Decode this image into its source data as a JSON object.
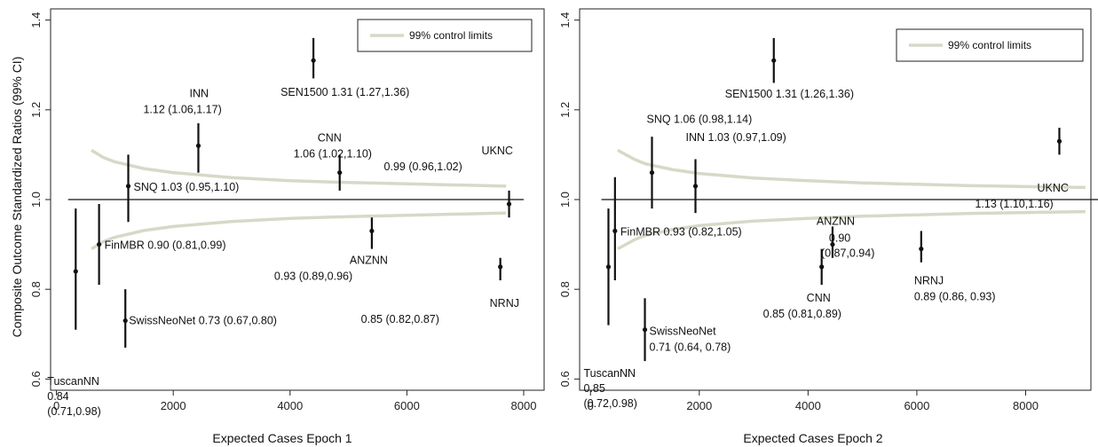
{
  "y_axis_title": "Composite Outcome Standardized Ratios (99% CI)",
  "colors": {
    "control_limit": "#d8d8c8",
    "line": "#111111",
    "point": "#111111"
  },
  "chart_data": [
    {
      "type": "scatter",
      "xlabel": "Expected Cases Epoch 1",
      "ylabel": "Composite Outcome Standardized Ratios (99% CI)",
      "xlim": [
        -100,
        8350
      ],
      "ylim": [
        0.575,
        1.425
      ],
      "x_ticks": [
        0,
        2000,
        4000,
        6000,
        8000
      ],
      "x_tick_labels": [
        "0",
        "2000",
        "4000",
        "6000",
        "8000"
      ],
      "y_ticks": [
        0.6,
        0.8,
        1.0,
        1.2,
        1.4
      ],
      "y_tick_labels": [
        "0.6",
        "0.8",
        "1.0",
        "1.2",
        "1.4"
      ],
      "legend": {
        "label": "99% control limits",
        "position": "top-right"
      },
      "reference_line": 1.0,
      "control_limits": {
        "x": [
          600,
          800,
          1000,
          1500,
          2000,
          3000,
          4000,
          5000,
          6000,
          7000,
          7700
        ],
        "upper": [
          1.11,
          1.094,
          1.084,
          1.069,
          1.06,
          1.049,
          1.042,
          1.038,
          1.035,
          1.032,
          1.03
        ],
        "lower": [
          0.89,
          0.906,
          0.916,
          0.931,
          0.94,
          0.951,
          0.958,
          0.962,
          0.965,
          0.968,
          0.97
        ]
      },
      "points": [
        {
          "name": "TuscanNN",
          "x": 330,
          "y": 0.84,
          "lo": 0.71,
          "hi": 0.98,
          "lines": [
            "TuscanNN",
            "0.84",
            "(0.71,0.98)"
          ]
        },
        {
          "name": "FinMBR",
          "x": 730,
          "y": 0.9,
          "lo": 0.81,
          "hi": 0.99,
          "lines": [
            "FinMBR 0.90 (0.81,0.99)"
          ]
        },
        {
          "name": "SwissNeoNet",
          "x": 1180,
          "y": 0.73,
          "lo": 0.67,
          "hi": 0.8,
          "lines": [
            "SwissNeoNet 0.73 (0.67,0.80)"
          ]
        },
        {
          "name": "SNQ",
          "x": 1230,
          "y": 1.03,
          "lo": 0.95,
          "hi": 1.1,
          "lines": [
            "SNQ 1.03 (0.95,1.10)"
          ]
        },
        {
          "name": "INN",
          "x": 2430,
          "y": 1.12,
          "lo": 1.06,
          "hi": 1.17,
          "lines": [
            "INN",
            "1.12 (1.06,1.17)"
          ]
        },
        {
          "name": "SEN1500",
          "x": 4400,
          "y": 1.31,
          "lo": 1.27,
          "hi": 1.36,
          "lines": [
            "SEN1500 1.31 (1.27,1.36)"
          ]
        },
        {
          "name": "CNN",
          "x": 4850,
          "y": 1.06,
          "lo": 1.02,
          "hi": 1.1,
          "lines": [
            "CNN",
            "1.06 (1.02,1.10)"
          ]
        },
        {
          "name": "ANZNN",
          "x": 5400,
          "y": 0.93,
          "lo": 0.89,
          "hi": 0.96,
          "lines": [
            "ANZNN",
            "0.93 (0.89,0.96)"
          ]
        },
        {
          "name": "NRNJ",
          "x": 7600,
          "y": 0.85,
          "lo": 0.82,
          "hi": 0.87,
          "lines": [
            "NRNJ",
            "0.85 (0.82,0.87)"
          ]
        },
        {
          "name": "UKNC",
          "x": 7750,
          "y": 0.99,
          "lo": 0.96,
          "hi": 1.02,
          "lines": [
            "UKNC",
            "0.99 (0.96,1.02)"
          ]
        }
      ]
    },
    {
      "type": "scatter",
      "xlabel": "Expected Cases Epoch 2",
      "ylabel": "",
      "xlim": [
        -200,
        9200
      ],
      "ylim": [
        0.575,
        1.425
      ],
      "x_ticks": [
        0,
        2000,
        4000,
        6000,
        8000
      ],
      "x_tick_labels": [
        "0",
        "2000",
        "4000",
        "6000",
        "8000"
      ],
      "y_ticks": [
        0.6,
        0.8,
        1.0,
        1.2,
        1.4
      ],
      "y_tick_labels": [
        "0.6",
        "0.8",
        "1.0",
        "1.2",
        "1.4"
      ],
      "legend": {
        "label": "99% control limits",
        "position": "top-right"
      },
      "reference_line": 1.0,
      "control_limits": {
        "x": [
          500,
          800,
          1000,
          1500,
          2000,
          3000,
          4000,
          5000,
          6000,
          7000,
          8000,
          9100
        ],
        "upper": [
          1.11,
          1.09,
          1.08,
          1.067,
          1.058,
          1.048,
          1.042,
          1.037,
          1.034,
          1.031,
          1.029,
          1.027
        ],
        "lower": [
          0.89,
          0.91,
          0.92,
          0.933,
          0.942,
          0.952,
          0.958,
          0.963,
          0.966,
          0.969,
          0.971,
          0.973
        ]
      },
      "points": [
        {
          "name": "TuscanNN",
          "x": 330,
          "y": 0.85,
          "lo": 0.72,
          "hi": 0.98,
          "lines": [
            "TuscanNN",
            "0.85",
            "(0.72,0.98)"
          ]
        },
        {
          "name": "FinMBR",
          "x": 450,
          "y": 0.93,
          "lo": 0.82,
          "hi": 1.05,
          "lines": [
            "FinMBR 0.93 (0.82,1.05)"
          ]
        },
        {
          "name": "SwissNeoNet",
          "x": 1000,
          "y": 0.71,
          "lo": 0.64,
          "hi": 0.78,
          "lines": [
            "SwissNeoNet",
            "0.71 (0.64, 0.78)"
          ]
        },
        {
          "name": "SNQ",
          "x": 1130,
          "y": 1.06,
          "lo": 0.98,
          "hi": 1.14,
          "lines": [
            "SNQ 1.06 (0.98,1.14)"
          ]
        },
        {
          "name": "INN",
          "x": 1930,
          "y": 1.03,
          "lo": 0.97,
          "hi": 1.09,
          "lines": [
            "INN 1.03 (0.97,1.09)"
          ]
        },
        {
          "name": "SEN1500",
          "x": 3370,
          "y": 1.31,
          "lo": 1.26,
          "hi": 1.36,
          "lines": [
            "SEN1500 1.31 (1.26,1.36)"
          ]
        },
        {
          "name": "CNN",
          "x": 4250,
          "y": 0.85,
          "lo": 0.81,
          "hi": 0.89,
          "lines": [
            "CNN",
            "0.85 (0.81,0.89)"
          ]
        },
        {
          "name": "ANZNN",
          "x": 4450,
          "y": 0.9,
          "lo": 0.87,
          "hi": 0.94,
          "lines": [
            "ANZNN",
            "0.90",
            "(0.87,0.94)"
          ]
        },
        {
          "name": "NRNJ",
          "x": 6080,
          "y": 0.89,
          "lo": 0.86,
          "hi": 0.93,
          "lines": [
            "NRNJ",
            "0.89 (0.86, 0.93)"
          ]
        },
        {
          "name": "UKNC",
          "x": 8620,
          "y": 1.13,
          "lo": 1.1,
          "hi": 1.16,
          "lines": [
            "UKNC",
            "1.13 (1.10,1.16)"
          ]
        }
      ]
    }
  ]
}
